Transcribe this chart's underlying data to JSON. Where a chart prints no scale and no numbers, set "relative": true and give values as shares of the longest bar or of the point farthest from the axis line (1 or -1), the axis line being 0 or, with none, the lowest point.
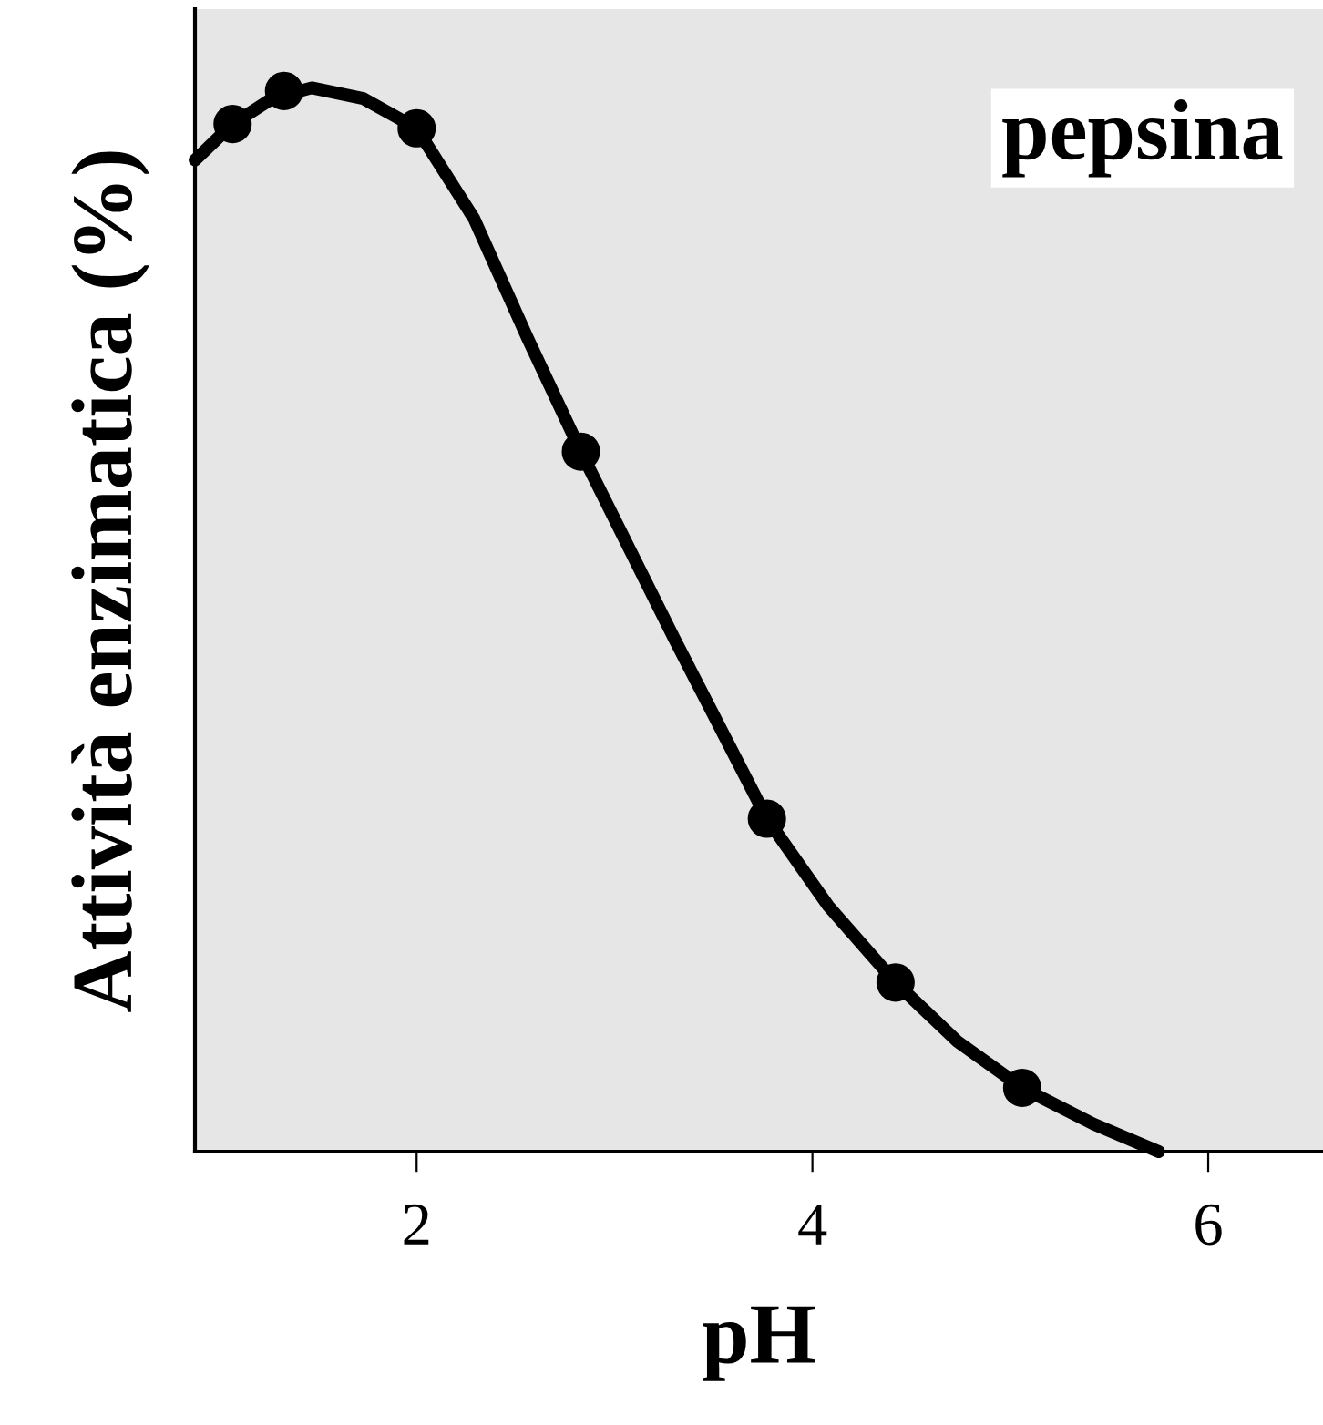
{
  "chart_data": {
    "type": "line",
    "relative": true,
    "xlabel": "pH",
    "ylabel": "Attività enzimatica (%)",
    "xlim": [
      0.88,
      6.58
    ],
    "xticks": [
      2,
      4,
      6
    ],
    "grid": false,
    "annotations": [
      "pepsina"
    ],
    "series": [
      {
        "color": "#000000",
        "marker": "none",
        "x": [
          0.88,
          1.07,
          1.27,
          1.47,
          1.73,
          2.0,
          2.29,
          2.56,
          2.83,
          3.3,
          3.77,
          4.08,
          4.42,
          4.73,
          5.06,
          5.42,
          5.75
        ],
        "values": [
          0.932,
          0.966,
          0.99,
          1.0,
          0.99,
          0.962,
          0.877,
          0.765,
          0.658,
          0.483,
          0.313,
          0.231,
          0.159,
          0.104,
          0.06,
          0.026,
          0.0
        ]
      },
      {
        "type": "scatter",
        "color": "#000000",
        "marker": "circle",
        "x": [
          1.07,
          1.33,
          2.0,
          2.83,
          3.77,
          4.42,
          5.06
        ],
        "values": [
          0.966,
          0.997,
          0.962,
          0.658,
          0.313,
          0.159,
          0.06
        ]
      }
    ]
  }
}
